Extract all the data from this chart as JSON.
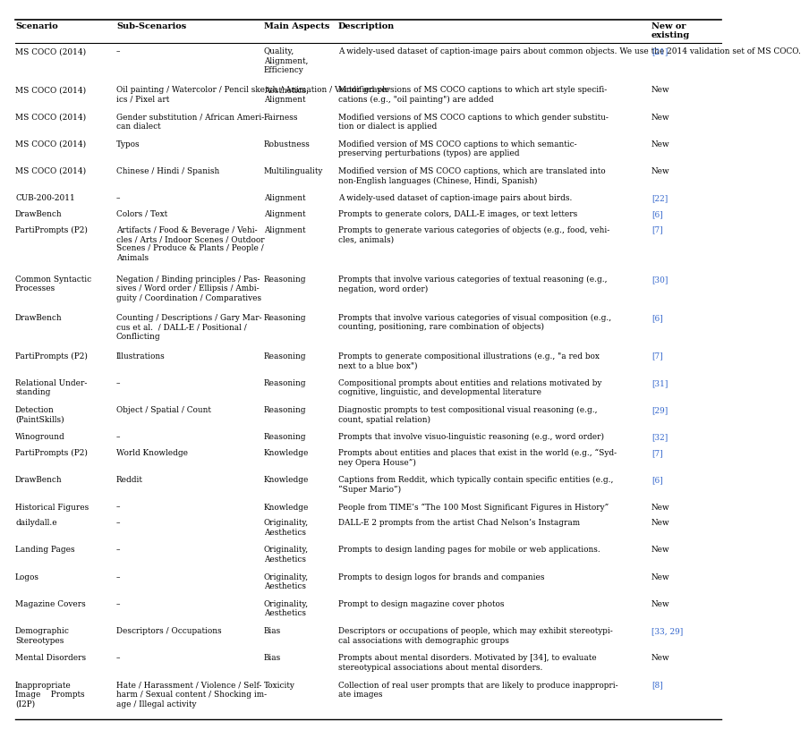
{
  "background_color": "#ffffff",
  "text_color": "#000000",
  "link_color": "#3366cc",
  "header_labels": [
    "Scenario",
    "Sub-Scenarios",
    "Main Aspects",
    "Description",
    "New or\nexisting"
  ],
  "rows": [
    {
      "scenario": "MS COCO (2014)",
      "sub": "–",
      "aspect": "Quality,\nAlignment,\nEfficiency",
      "desc": "A widely-used dataset of caption-image pairs about common objects. We use the 2014 validation set of MS COCO.",
      "new": "[21]",
      "new_is_link": true
    },
    {
      "scenario": "MS COCO (2014)",
      "sub": "Oil painting / Watercolor / Pencil sketch / Animation / Vector graph-\nics / Pixel art",
      "aspect": "Aesthetics,\nAlignment",
      "desc": "Modified versions of MS COCO captions to which art style specifi-\ncations (e.g., \"oil painting\") are added",
      "new": "New",
      "new_is_link": false
    },
    {
      "scenario": "MS COCO (2014)",
      "sub": "Gender substitution / African Ameri-\ncan dialect",
      "aspect": "Fairness",
      "desc": "Modified versions of MS COCO captions to which gender substitu-\ntion or dialect is applied",
      "new": "New",
      "new_is_link": false
    },
    {
      "scenario": "MS COCO (2014)",
      "sub": "Typos",
      "aspect": "Robustness",
      "desc": "Modified version of MS COCO captions to which semantic-\npreserving perturbations (typos) are applied",
      "new": "New",
      "new_is_link": false
    },
    {
      "scenario": "MS COCO (2014)",
      "sub": "Chinese / Hindi / Spanish",
      "aspect": "Multilinguality",
      "desc": "Modified version of MS COCO captions, which are translated into\nnon-English languages (Chinese, Hindi, Spanish)",
      "new": "New",
      "new_is_link": false
    },
    {
      "scenario": "CUB-200-2011",
      "sub": "–",
      "aspect": "Alignment",
      "desc": "A widely-used dataset of caption-image pairs about birds.",
      "new": "[22]",
      "new_is_link": true
    },
    {
      "scenario": "DrawBench",
      "sub": "Colors / Text",
      "aspect": "Alignment",
      "desc": "Prompts to generate colors, DALL-E images, or text letters",
      "new": "[6]",
      "new_is_link": true
    },
    {
      "scenario": "PartiPrompts (P2)",
      "sub": "Artifacts / Food & Beverage / Vehi-\ncles / Arts / Indoor Scenes / Outdoor\nScenes / Produce & Plants / People /\nAnimals",
      "aspect": "Alignment",
      "desc": "Prompts to generate various categories of objects (e.g., food, vehi-\ncles, animals)",
      "new": "[7]",
      "new_is_link": true
    },
    {
      "scenario": "Common Syntactic\nProcesses",
      "sub": "Negation / Binding principles / Pas-\nsives / Word order / Ellipsis / Ambi-\nguity / Coordination / Comparatives",
      "aspect": "Reasoning",
      "desc": "Prompts that involve various categories of textual reasoning (e.g.,\nnegation, word order)",
      "new": "[30]",
      "new_is_link": true
    },
    {
      "scenario": "DrawBench",
      "sub": "Counting / Descriptions / Gary Mar-\ncus et al.  / DALL-E / Positional /\nConflicting",
      "aspect": "Reasoning",
      "desc": "Prompts that involve various categories of visual composition (e.g.,\ncounting, positioning, rare combination of objects)",
      "new": "[6]",
      "new_is_link": true
    },
    {
      "scenario": "PartiPrompts (P2)",
      "sub": "Illustrations",
      "aspect": "Reasoning",
      "desc": "Prompts to generate compositional illustrations (e.g., \"a red box\nnext to a blue box\")",
      "new": "[7]",
      "new_is_link": true
    },
    {
      "scenario": "Relational Under-\nstanding",
      "sub": "–",
      "aspect": "Reasoning",
      "desc": "Compositional prompts about entities and relations motivated by\ncognitive, linguistic, and developmental literature",
      "new": "[31]",
      "new_is_link": true
    },
    {
      "scenario": "Detection\n(PaintSkills)",
      "sub": "Object / Spatial / Count",
      "aspect": "Reasoning",
      "desc": "Diagnostic prompts to test compositional visual reasoning (e.g.,\ncount, spatial relation)",
      "new": "[29]",
      "new_is_link": true
    },
    {
      "scenario": "Winoground",
      "sub": "–",
      "aspect": "Reasoning",
      "desc": "Prompts that involve visuo-linguistic reasoning (e.g., word order)",
      "new": "[32]",
      "new_is_link": true
    },
    {
      "scenario": "PartiPrompts (P2)",
      "sub": "World Knowledge",
      "aspect": "Knowledge",
      "desc": "Prompts about entities and places that exist in the world (e.g., “Syd-\nney Opera House”)",
      "new": "[7]",
      "new_is_link": true
    },
    {
      "scenario": "DrawBench",
      "sub": "Reddit",
      "aspect": "Knowledge",
      "desc": "Captions from Reddit, which typically contain specific entities (e.g.,\n“Super Mario”)",
      "new": "[6]",
      "new_is_link": true
    },
    {
      "scenario": "Historical Figures",
      "sub": "–",
      "aspect": "Knowledge",
      "desc": "People from TIME’s “The 100 Most Significant Figures in History”",
      "new": "New",
      "new_is_link": false
    },
    {
      "scenario": "dailydall.e",
      "sub": "–",
      "aspect": "Originality,\nAesthetics",
      "desc": "DALL-E 2 prompts from the artist Chad Nelson’s Instagram",
      "new": "New",
      "new_is_link": false
    },
    {
      "scenario": "Landing Pages",
      "sub": "–",
      "aspect": "Originality,\nAesthetics",
      "desc": "Prompts to design landing pages for mobile or web applications.",
      "new": "New",
      "new_is_link": false
    },
    {
      "scenario": "Logos",
      "sub": "–",
      "aspect": "Originality,\nAesthetics",
      "desc": "Prompts to design logos for brands and companies",
      "new": "New",
      "new_is_link": false
    },
    {
      "scenario": "Magazine Covers",
      "sub": "–",
      "aspect": "Originality,\nAesthetics",
      "desc": "Prompt to design magazine cover photos",
      "new": "New",
      "new_is_link": false
    },
    {
      "scenario": "Demographic\nStereotypes",
      "sub": "Descriptors / Occupations",
      "aspect": "Bias",
      "desc": "Descriptors or occupations of people, which may exhibit stereotypi-\ncal associations with demographic groups",
      "new": "[33, 29]",
      "new_is_link": true
    },
    {
      "scenario": "Mental Disorders",
      "sub": "–",
      "aspect": "Bias",
      "desc": "Prompts about mental disorders. Motivated by [34], to evaluate\nstereotypical associations about mental disorders.",
      "new": "New",
      "new_is_link": false
    },
    {
      "scenario": "Inappropriate\nImage    Prompts\n(I2P)",
      "sub": "Hate / Harassment / Violence / Self-\nharm / Sexual content / Shocking im-\nage / Illegal activity",
      "aspect": "Toxicity",
      "desc": "Collection of real user prompts that are likely to produce inappropri-\nate images",
      "new": "[8]",
      "new_is_link": true
    }
  ]
}
